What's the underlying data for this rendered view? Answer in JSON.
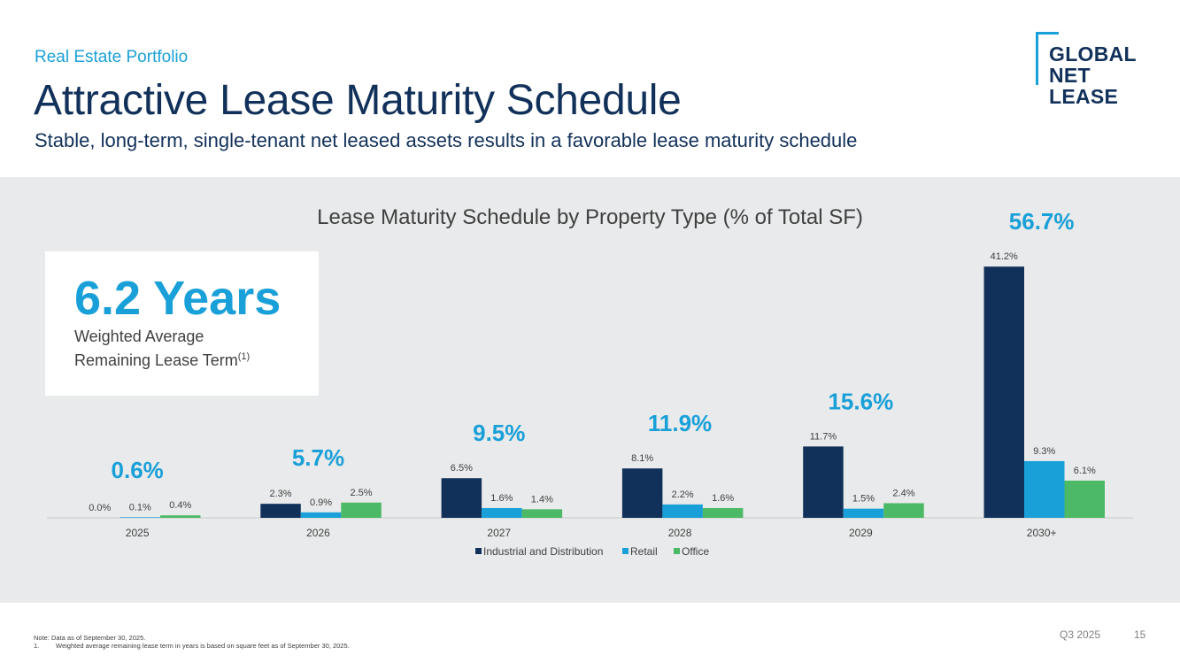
{
  "header": {
    "section": "Real Estate Portfolio",
    "title": "Attractive Lease Maturity Schedule",
    "subtitle": "Stable, long-term, single-tenant net leased assets results in a favorable lease maturity schedule"
  },
  "logo": {
    "line1": "GLOBAL",
    "line2": "NET",
    "line3": "LEASE"
  },
  "callout": {
    "value": "6.2 Years",
    "line1": "Weighted Average",
    "line2": "Remaining Lease Term",
    "footnote_ref": "(1)"
  },
  "chart_data": {
    "type": "bar",
    "title": "Lease Maturity Schedule by Property Type (% of Total SF)",
    "categories": [
      "2025",
      "2026",
      "2027",
      "2028",
      "2029",
      "2030+"
    ],
    "series": [
      {
        "name": "Industrial and Distribution",
        "color": "#12315a",
        "values": [
          0.0,
          2.3,
          6.5,
          8.1,
          11.7,
          41.2
        ],
        "labels": [
          "0.0%",
          "2.3%",
          "6.5%",
          "8.1%",
          "11.7%",
          "41.2%"
        ]
      },
      {
        "name": "Retail",
        "color": "#1aa0d8",
        "values": [
          0.1,
          0.9,
          1.6,
          2.2,
          1.5,
          9.3
        ],
        "labels": [
          "0.1%",
          "0.9%",
          "1.6%",
          "2.2%",
          "1.5%",
          "9.3%"
        ]
      },
      {
        "name": "Office",
        "color": "#4cb966",
        "values": [
          0.4,
          2.5,
          1.4,
          1.6,
          2.4,
          6.1
        ],
        "labels": [
          "0.4%",
          "2.5%",
          "1.4%",
          "1.6%",
          "2.4%",
          "6.1%"
        ]
      }
    ],
    "totals": [
      0.6,
      5.7,
      9.5,
      11.9,
      15.6,
      56.7
    ],
    "total_labels": [
      "0.6%",
      "5.7%",
      "9.5%",
      "11.9%",
      "15.6%",
      "56.7%"
    ],
    "total_color": "#1aa0d8",
    "ylim": [
      0,
      45
    ],
    "legend_position": "bottom-center",
    "grid": false
  },
  "footer": {
    "note": "Note: Data as of September 30, 2025.",
    "footnote_number": "1.",
    "footnote_text": "Weighted average remaining lease term in years is based on square feet as of September 30, 2025.",
    "period": "Q3 2025",
    "page": "15"
  }
}
